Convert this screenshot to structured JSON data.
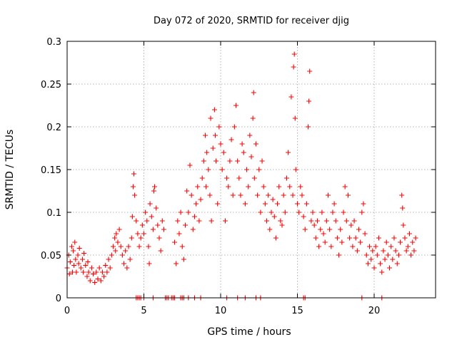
{
  "chart_data": {
    "type": "scatter",
    "title": "Day 072 of 2020, SRMTID for receiver djig",
    "xlabel": "GPS time / hours",
    "ylabel": "SRMTID / TECUs",
    "xlim": [
      0,
      24
    ],
    "ylim": [
      0,
      0.3
    ],
    "x_ticks": [
      0,
      5,
      10,
      15,
      20
    ],
    "x_tick_labels": [
      "0",
      "5",
      "10",
      "15",
      "20"
    ],
    "y_ticks": [
      0,
      0.05,
      0.1,
      0.15,
      0.2,
      0.25,
      0.3
    ],
    "y_tick_labels": [
      "0",
      "0.05",
      "0.1",
      "0.15",
      "0.2",
      "0.25",
      "0.3"
    ],
    "grid": true,
    "marker": "+",
    "series_color": "#ff0000",
    "series": [
      {
        "name": "SRMTID",
        "points": [
          [
            0.0,
            0.035
          ],
          [
            0.1,
            0.05
          ],
          [
            0.15,
            0.028
          ],
          [
            0.2,
            0.042
          ],
          [
            0.3,
            0.06
          ],
          [
            0.35,
            0.03
          ],
          [
            0.4,
            0.055
          ],
          [
            0.45,
            0.038
          ],
          [
            0.5,
            0.065
          ],
          [
            0.55,
            0.045
          ],
          [
            0.6,
            0.03
          ],
          [
            0.7,
            0.05
          ],
          [
            0.75,
            0.04
          ],
          [
            0.8,
            0.058
          ],
          [
            0.9,
            0.035
          ],
          [
            1.0,
            0.045
          ],
          [
            1.05,
            0.03
          ],
          [
            1.1,
            0.052
          ],
          [
            1.2,
            0.038
          ],
          [
            1.3,
            0.025
          ],
          [
            1.35,
            0.042
          ],
          [
            1.4,
            0.03
          ],
          [
            1.5,
            0.02
          ],
          [
            1.6,
            0.035
          ],
          [
            1.7,
            0.028
          ],
          [
            1.8,
            0.018
          ],
          [
            1.9,
            0.03
          ],
          [
            2.0,
            0.022
          ],
          [
            2.1,
            0.035
          ],
          [
            2.2,
            0.02
          ],
          [
            2.3,
            0.03
          ],
          [
            2.4,
            0.025
          ],
          [
            2.5,
            0.038
          ],
          [
            2.6,
            0.03
          ],
          [
            2.7,
            0.045
          ],
          [
            2.8,
            0.035
          ],
          [
            2.9,
            0.05
          ],
          [
            3.0,
            0.06
          ],
          [
            3.1,
            0.07
          ],
          [
            3.15,
            0.055
          ],
          [
            3.2,
            0.075
          ],
          [
            3.3,
            0.065
          ],
          [
            3.4,
            0.08
          ],
          [
            3.5,
            0.06
          ],
          [
            3.6,
            0.05
          ],
          [
            3.7,
            0.04
          ],
          [
            3.8,
            0.055
          ],
          [
            3.9,
            0.035
          ],
          [
            4.0,
            0.06
          ],
          [
            4.1,
            0.045
          ],
          [
            4.2,
            0.07
          ],
          [
            4.25,
            0.095
          ],
          [
            4.3,
            0.13
          ],
          [
            4.35,
            0.145
          ],
          [
            4.4,
            0.12
          ],
          [
            4.5,
            0.09
          ],
          [
            4.6,
            0.075
          ],
          [
            4.7,
            0.06
          ],
          [
            4.8,
            0.07
          ],
          [
            4.9,
            0.085
          ],
          [
            5.0,
            0.075
          ],
          [
            5.1,
            0.1
          ],
          [
            5.2,
            0.09
          ],
          [
            5.3,
            0.06
          ],
          [
            5.35,
            0.04
          ],
          [
            5.4,
            0.11
          ],
          [
            5.5,
            0.095
          ],
          [
            5.6,
            0.08
          ],
          [
            5.65,
            0.125
          ],
          [
            5.7,
            0.13
          ],
          [
            5.8,
            0.105
          ],
          [
            5.9,
            0.085
          ],
          [
            6.0,
            0.07
          ],
          [
            6.1,
            0.055
          ],
          [
            6.2,
            0.09
          ],
          [
            6.3,
            0.08
          ],
          [
            7.0,
            0.065
          ],
          [
            7.1,
            0.04
          ],
          [
            7.2,
            0.09
          ],
          [
            7.3,
            0.075
          ],
          [
            7.4,
            0.1
          ],
          [
            7.5,
            0.06
          ],
          [
            7.6,
            0.045
          ],
          [
            7.7,
            0.085
          ],
          [
            7.8,
            0.125
          ],
          [
            7.9,
            0.1
          ],
          [
            8.0,
            0.155
          ],
          [
            8.1,
            0.12
          ],
          [
            8.2,
            0.08
          ],
          [
            8.3,
            0.095
          ],
          [
            8.4,
            0.11
          ],
          [
            8.5,
            0.13
          ],
          [
            8.6,
            0.09
          ],
          [
            8.7,
            0.115
          ],
          [
            8.8,
            0.14
          ],
          [
            8.9,
            0.16
          ],
          [
            9.0,
            0.19
          ],
          [
            9.05,
            0.13
          ],
          [
            9.1,
            0.17
          ],
          [
            9.2,
            0.15
          ],
          [
            9.3,
            0.12
          ],
          [
            9.35,
            0.21
          ],
          [
            9.4,
            0.09
          ],
          [
            9.5,
            0.175
          ],
          [
            9.6,
            0.22
          ],
          [
            9.65,
            0.19
          ],
          [
            9.7,
            0.16
          ],
          [
            9.8,
            0.11
          ],
          [
            9.9,
            0.2
          ],
          [
            10.0,
            0.18
          ],
          [
            10.1,
            0.15
          ],
          [
            10.2,
            0.17
          ],
          [
            10.3,
            0.09
          ],
          [
            10.4,
            0.14
          ],
          [
            10.5,
            0.13
          ],
          [
            10.6,
            0.16
          ],
          [
            10.7,
            0.185
          ],
          [
            10.8,
            0.12
          ],
          [
            10.9,
            0.2
          ],
          [
            11.0,
            0.225
          ],
          [
            11.1,
            0.16
          ],
          [
            11.2,
            0.14
          ],
          [
            11.3,
            0.12
          ],
          [
            11.4,
            0.18
          ],
          [
            11.5,
            0.17
          ],
          [
            11.6,
            0.11
          ],
          [
            11.7,
            0.15
          ],
          [
            11.8,
            0.13
          ],
          [
            11.9,
            0.19
          ],
          [
            12.0,
            0.165
          ],
          [
            12.1,
            0.21
          ],
          [
            12.15,
            0.24
          ],
          [
            12.2,
            0.14
          ],
          [
            12.3,
            0.18
          ],
          [
            12.4,
            0.12
          ],
          [
            12.5,
            0.15
          ],
          [
            12.6,
            0.1
          ],
          [
            12.7,
            0.16
          ],
          [
            12.8,
            0.13
          ],
          [
            12.9,
            0.11
          ],
          [
            13.0,
            0.09
          ],
          [
            13.1,
            0.12
          ],
          [
            13.2,
            0.08
          ],
          [
            13.3,
            0.1
          ],
          [
            13.4,
            0.115
          ],
          [
            13.5,
            0.095
          ],
          [
            13.6,
            0.07
          ],
          [
            13.7,
            0.11
          ],
          [
            13.8,
            0.13
          ],
          [
            13.9,
            0.09
          ],
          [
            14.0,
            0.085
          ],
          [
            14.1,
            0.12
          ],
          [
            14.2,
            0.1
          ],
          [
            14.3,
            0.14
          ],
          [
            14.4,
            0.17
          ],
          [
            14.5,
            0.13
          ],
          [
            14.6,
            0.235
          ],
          [
            14.7,
            0.12
          ],
          [
            14.75,
            0.27
          ],
          [
            14.8,
            0.285
          ],
          [
            14.85,
            0.21
          ],
          [
            14.9,
            0.15
          ],
          [
            15.0,
            0.11
          ],
          [
            15.1,
            0.1
          ],
          [
            15.2,
            0.13
          ],
          [
            15.3,
            0.12
          ],
          [
            15.4,
            0.095
          ],
          [
            15.5,
            0.08
          ],
          [
            15.6,
            0.11
          ],
          [
            15.7,
            0.2
          ],
          [
            15.75,
            0.23
          ],
          [
            15.8,
            0.265
          ],
          [
            15.9,
            0.09
          ],
          [
            16.0,
            0.1
          ],
          [
            16.1,
            0.085
          ],
          [
            16.2,
            0.07
          ],
          [
            16.3,
            0.09
          ],
          [
            16.4,
            0.06
          ],
          [
            16.5,
            0.08
          ],
          [
            16.6,
            0.1
          ],
          [
            16.7,
            0.075
          ],
          [
            16.8,
            0.065
          ],
          [
            16.9,
            0.09
          ],
          [
            17.0,
            0.12
          ],
          [
            17.1,
            0.08
          ],
          [
            17.2,
            0.06
          ],
          [
            17.3,
            0.1
          ],
          [
            17.4,
            0.11
          ],
          [
            17.5,
            0.09
          ],
          [
            17.6,
            0.07
          ],
          [
            17.7,
            0.05
          ],
          [
            17.8,
            0.08
          ],
          [
            17.9,
            0.065
          ],
          [
            18.0,
            0.1
          ],
          [
            18.1,
            0.13
          ],
          [
            18.2,
            0.09
          ],
          [
            18.3,
            0.12
          ],
          [
            18.4,
            0.07
          ],
          [
            18.5,
            0.085
          ],
          [
            18.6,
            0.06
          ],
          [
            18.7,
            0.09
          ],
          [
            18.8,
            0.07
          ],
          [
            18.9,
            0.055
          ],
          [
            19.0,
            0.08
          ],
          [
            19.1,
            0.065
          ],
          [
            19.2,
            0.1
          ],
          [
            19.3,
            0.11
          ],
          [
            19.4,
            0.075
          ],
          [
            19.5,
            0.05
          ],
          [
            19.6,
            0.04
          ],
          [
            19.7,
            0.06
          ],
          [
            19.8,
            0.045
          ],
          [
            19.9,
            0.055
          ],
          [
            20.0,
            0.035
          ],
          [
            20.1,
            0.06
          ],
          [
            20.2,
            0.05
          ],
          [
            20.3,
            0.07
          ],
          [
            20.4,
            0.04
          ],
          [
            20.5,
            0.03
          ],
          [
            20.6,
            0.055
          ],
          [
            20.7,
            0.045
          ],
          [
            20.8,
            0.065
          ],
          [
            20.9,
            0.05
          ],
          [
            21.0,
            0.035
          ],
          [
            21.1,
            0.06
          ],
          [
            21.2,
            0.045
          ],
          [
            21.3,
            0.07
          ],
          [
            21.4,
            0.055
          ],
          [
            21.5,
            0.04
          ],
          [
            21.6,
            0.05
          ],
          [
            21.7,
            0.065
          ],
          [
            21.8,
            0.12
          ],
          [
            21.85,
            0.105
          ],
          [
            21.9,
            0.085
          ],
          [
            22.0,
            0.07
          ],
          [
            22.1,
            0.055
          ],
          [
            22.2,
            0.06
          ],
          [
            22.3,
            0.075
          ],
          [
            22.4,
            0.05
          ],
          [
            22.5,
            0.065
          ],
          [
            22.6,
            0.055
          ],
          [
            22.7,
            0.07
          ],
          [
            4.5,
            0
          ],
          [
            4.6,
            0
          ],
          [
            4.7,
            0
          ],
          [
            4.8,
            0
          ],
          [
            5.0,
            0
          ],
          [
            5.6,
            0
          ],
          [
            6.4,
            0
          ],
          [
            6.5,
            0
          ],
          [
            6.6,
            0
          ],
          [
            6.8,
            0
          ],
          [
            6.9,
            0
          ],
          [
            7.0,
            0
          ],
          [
            7.4,
            0
          ],
          [
            7.5,
            0
          ],
          [
            7.6,
            0
          ],
          [
            7.9,
            0
          ],
          [
            8.3,
            0
          ],
          [
            8.7,
            0
          ],
          [
            10.4,
            0
          ],
          [
            11.1,
            0
          ],
          [
            11.6,
            0
          ],
          [
            12.3,
            0
          ],
          [
            12.6,
            0
          ],
          [
            15.4,
            0
          ],
          [
            15.5,
            0
          ],
          [
            19.2,
            0
          ],
          [
            20.5,
            0
          ]
        ]
      }
    ]
  }
}
